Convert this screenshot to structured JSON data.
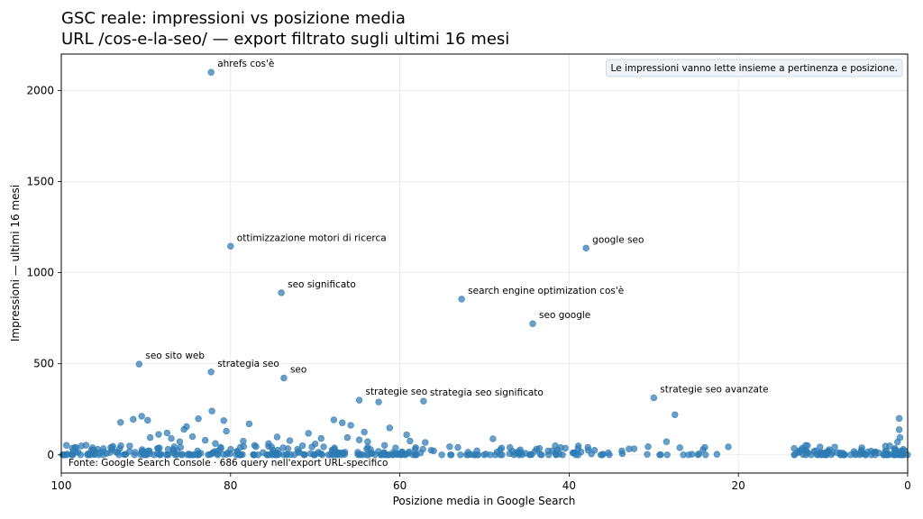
{
  "chart_data": {
    "type": "scatter",
    "title": "GSC reale: impressioni vs posizione media",
    "subtitle": "URL /cos-e-la-seo/ — export filtrato sugli ultimi 16 mesi",
    "xlabel": "Posizione media in Google Search",
    "ylabel": "Impressioni — ultimi 16 mesi",
    "xlim": [
      100,
      0
    ],
    "ylim": [
      -100,
      2200
    ],
    "x_reversed": true,
    "xticks": [
      100,
      80,
      60,
      40,
      20,
      0
    ],
    "yticks": [
      0,
      500,
      1000,
      1500,
      2000
    ],
    "grid": true,
    "point_color": "#2e7bb4",
    "annotation_box": "Le impressioni vanno lette insieme a pertinenza e posizione.",
    "source_note": "Fonte: Google Search Console · 686 query nell'export URL-specifico",
    "labeled_points": [
      {
        "label": "ahrefs cos'è",
        "x": 82.3,
        "y": 2100
      },
      {
        "label": "ottimizzazione motori di ricerca",
        "x": 80.0,
        "y": 1145
      },
      {
        "label": "google seo",
        "x": 38.0,
        "y": 1135
      },
      {
        "label": "seo significato",
        "x": 74.0,
        "y": 890
      },
      {
        "label": "search engine optimization cos'è",
        "x": 52.7,
        "y": 855
      },
      {
        "label": "seo google",
        "x": 44.3,
        "y": 720
      },
      {
        "label": "seo sito web",
        "x": 90.8,
        "y": 498
      },
      {
        "label": "strategia seo",
        "x": 82.3,
        "y": 455
      },
      {
        "label": "seo",
        "x": 73.7,
        "y": 422
      },
      {
        "label": "strategie seo",
        "x": 64.8,
        "y": 300
      },
      {
        "label": "strategia seo significato",
        "x": 57.2,
        "y": 295
      },
      {
        "label": "strategie seo avanzate",
        "x": 30.0,
        "y": 313
      }
    ],
    "points": [
      {
        "x": 93.0,
        "y": 178
      },
      {
        "x": 91.5,
        "y": 195
      },
      {
        "x": 90.5,
        "y": 212
      },
      {
        "x": 89.8,
        "y": 190
      },
      {
        "x": 89.5,
        "y": 95
      },
      {
        "x": 88.5,
        "y": 112
      },
      {
        "x": 87.5,
        "y": 120
      },
      {
        "x": 87.0,
        "y": 90
      },
      {
        "x": 86.0,
        "y": 72
      },
      {
        "x": 85.5,
        "y": 140
      },
      {
        "x": 85.2,
        "y": 155
      },
      {
        "x": 84.5,
        "y": 100
      },
      {
        "x": 83.8,
        "y": 198
      },
      {
        "x": 83.0,
        "y": 80
      },
      {
        "x": 82.2,
        "y": 240
      },
      {
        "x": 81.8,
        "y": 62
      },
      {
        "x": 80.8,
        "y": 188
      },
      {
        "x": 80.5,
        "y": 130
      },
      {
        "x": 78.5,
        "y": 75
      },
      {
        "x": 77.8,
        "y": 170
      },
      {
        "x": 77.0,
        "y": 45
      },
      {
        "x": 75.5,
        "y": 62
      },
      {
        "x": 74.5,
        "y": 98
      },
      {
        "x": 73.0,
        "y": 78
      },
      {
        "x": 71.5,
        "y": 50
      },
      {
        "x": 70.8,
        "y": 118
      },
      {
        "x": 70.0,
        "y": 60
      },
      {
        "x": 69.3,
        "y": 90
      },
      {
        "x": 67.8,
        "y": 192
      },
      {
        "x": 66.8,
        "y": 176
      },
      {
        "x": 66.2,
        "y": 95
      },
      {
        "x": 65.8,
        "y": 162
      },
      {
        "x": 64.8,
        "y": 82
      },
      {
        "x": 64.2,
        "y": 125
      },
      {
        "x": 63.8,
        "y": 72
      },
      {
        "x": 62.5,
        "y": 290
      },
      {
        "x": 61.8,
        "y": 52
      },
      {
        "x": 61.2,
        "y": 148
      },
      {
        "x": 60.5,
        "y": 38
      },
      {
        "x": 59.2,
        "y": 110
      },
      {
        "x": 58.8,
        "y": 76
      },
      {
        "x": 58.2,
        "y": 32
      },
      {
        "x": 57.0,
        "y": 68
      },
      {
        "x": 56.0,
        "y": 22
      },
      {
        "x": 49.0,
        "y": 88
      },
      {
        "x": 47.0,
        "y": 40
      },
      {
        "x": 46.0,
        "y": 18
      },
      {
        "x": 43.5,
        "y": 35
      },
      {
        "x": 42.0,
        "y": 22
      },
      {
        "x": 41.0,
        "y": 40
      },
      {
        "x": 37.0,
        "y": 25
      },
      {
        "x": 28.5,
        "y": 72
      },
      {
        "x": 27.5,
        "y": 220
      },
      {
        "x": 13.0,
        "y": 12
      },
      {
        "x": 12.0,
        "y": 22
      },
      {
        "x": 1.0,
        "y": 200
      },
      {
        "x": 1.0,
        "y": 138
      },
      {
        "x": 0.9,
        "y": 95
      },
      {
        "x": 1.2,
        "y": 70
      },
      {
        "x": 1.5,
        "y": 35
      },
      {
        "x": 2.5,
        "y": 20
      },
      {
        "x": 4.0,
        "y": 12
      },
      {
        "x": 5.5,
        "y": 5
      },
      {
        "x": 7.5,
        "y": 3
      }
    ]
  }
}
